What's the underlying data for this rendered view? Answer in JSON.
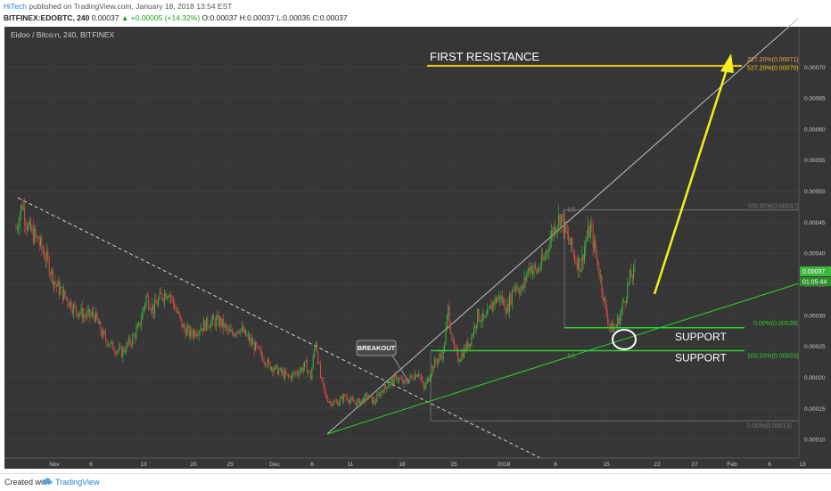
{
  "header": {
    "author": "HiTech",
    "published": "published on TradingView.com, January 18, 2018 13:54 EST",
    "symbol": "BITFINEX:EDOBTC, 240",
    "last": "0.00037",
    "change": "+0.00005 (+14.32%)",
    "ohlc": "O:0.00037 H:0.00037 L:0.00035 C:0.00037"
  },
  "chart_title": "Eidoo / Bitcoin, 240, BITFINEX",
  "footer": {
    "created_with": "Created with",
    "brand": "TradingView"
  },
  "colors": {
    "background": "#363636",
    "up": "#3cb83c",
    "down": "#e04b4b",
    "resistance": "#e8c411",
    "support": "#2ed12e",
    "arrow": "#f3f01e"
  },
  "chart_data": {
    "type": "candlestick",
    "y_axis": {
      "range": [
        8e-05,
        0.00075
      ],
      "ticks": [
        "0.00010",
        "0.00015",
        "0.00020",
        "0.00025",
        "0.00030",
        "0.00035",
        "0.00040",
        "0.00045",
        "0.00050",
        "0.00055",
        "0.00060",
        "0.00065",
        "0.00070"
      ],
      "price_tag": "0.00037",
      "countdown_tag": "01:05:44"
    },
    "x_axis": {
      "ticks": [
        "Nov",
        "6",
        "13",
        "20",
        "25",
        "Dec",
        "6",
        "11",
        "18",
        "25",
        "2018",
        "8",
        "15",
        "22",
        "27",
        "Feb",
        "6",
        "13",
        "19"
      ]
    },
    "trace": [
      [
        0,
        0.00044
      ],
      [
        5,
        0.00048
      ],
      [
        10,
        0.00044
      ],
      [
        18,
        0.00042
      ],
      [
        25,
        0.00039
      ],
      [
        32,
        0.00035
      ],
      [
        40,
        0.00033
      ],
      [
        48,
        0.00031
      ],
      [
        56,
        0.0003
      ],
      [
        64,
        0.0003
      ],
      [
        70,
        0.00027
      ],
      [
        78,
        0.00025
      ],
      [
        86,
        0.00024
      ],
      [
        94,
        0.00026
      ],
      [
        100,
        0.00028
      ],
      [
        106,
        0.00033
      ],
      [
        112,
        0.00031
      ],
      [
        118,
        0.00033
      ],
      [
        124,
        0.00034
      ],
      [
        130,
        0.00031
      ],
      [
        136,
        0.00028
      ],
      [
        142,
        0.00027
      ],
      [
        150,
        0.00028
      ],
      [
        158,
        0.00029
      ],
      [
        166,
        0.00029
      ],
      [
        174,
        0.00027
      ],
      [
        182,
        0.00028
      ],
      [
        190,
        0.00026
      ],
      [
        198,
        0.00024
      ],
      [
        206,
        0.00022
      ],
      [
        214,
        0.00021
      ],
      [
        222,
        0.0002
      ],
      [
        230,
        0.00021
      ],
      [
        236,
        0.00022
      ],
      [
        240,
        0.0002
      ],
      [
        244,
        0.00026
      ],
      [
        248,
        0.0002
      ],
      [
        252,
        0.00017
      ],
      [
        256,
        0.00016
      ],
      [
        262,
        0.00016
      ],
      [
        268,
        0.00017
      ],
      [
        274,
        0.00016
      ],
      [
        280,
        0.00016
      ],
      [
        286,
        0.00017
      ],
      [
        292,
        0.00016
      ],
      [
        298,
        0.00018
      ],
      [
        304,
        0.00019
      ],
      [
        310,
        0.0002
      ],
      [
        316,
        0.00019
      ],
      [
        322,
        0.0002
      ],
      [
        328,
        0.00021
      ],
      [
        332,
        0.00018
      ],
      [
        336,
        0.0002
      ],
      [
        340,
        0.00022
      ],
      [
        344,
        0.00023
      ],
      [
        348,
        0.00024
      ],
      [
        352,
        0.00031
      ],
      [
        356,
        0.00025
      ],
      [
        360,
        0.00023
      ],
      [
        364,
        0.00024
      ],
      [
        370,
        0.00026
      ],
      [
        376,
        0.0003
      ],
      [
        382,
        0.00029
      ],
      [
        388,
        0.00032
      ],
      [
        394,
        0.00033
      ],
      [
        400,
        0.00031
      ],
      [
        406,
        0.00035
      ],
      [
        412,
        0.00034
      ],
      [
        418,
        0.00038
      ],
      [
        424,
        0.00037
      ],
      [
        430,
        0.00039
      ],
      [
        436,
        0.00043
      ],
      [
        440,
        0.00045
      ],
      [
        444,
        0.00046
      ],
      [
        448,
        0.00043
      ],
      [
        452,
        0.00041
      ],
      [
        456,
        0.00039
      ],
      [
        460,
        0.00038
      ],
      [
        464,
        0.00042
      ],
      [
        468,
        0.00044
      ],
      [
        472,
        0.0004
      ],
      [
        476,
        0.00036
      ],
      [
        480,
        0.00031
      ],
      [
        484,
        0.00028
      ],
      [
        488,
        0.00028
      ],
      [
        492,
        0.0003
      ],
      [
        496,
        0.00033
      ],
      [
        500,
        0.00036
      ],
      [
        504,
        0.00037
      ]
    ],
    "bars_total": 505,
    "drawings": [
      {
        "label": "FIRST RESISTANCE",
        "type": "horizontal",
        "price": 0.000702
      },
      {
        "label": "SUPPORT",
        "type": "horizontal",
        "price": 0.00028
      },
      {
        "label": "SUPPORT",
        "type": "horizontal",
        "price": 0.000243
      }
    ],
    "fib_labels": {
      "f1": "227.20%(0.00071)",
      "f2": "527.20%(0.00070)",
      "f3": "100.00%(0.00047)",
      "f4": "0.00%(0.00028)",
      "f5": "100.00%(0.00024)",
      "f6": "0.00%(0.00013)"
    },
    "small_labels": {
      "a": "1/1",
      "b": "1/1"
    },
    "callout": "BREAKOUT"
  }
}
